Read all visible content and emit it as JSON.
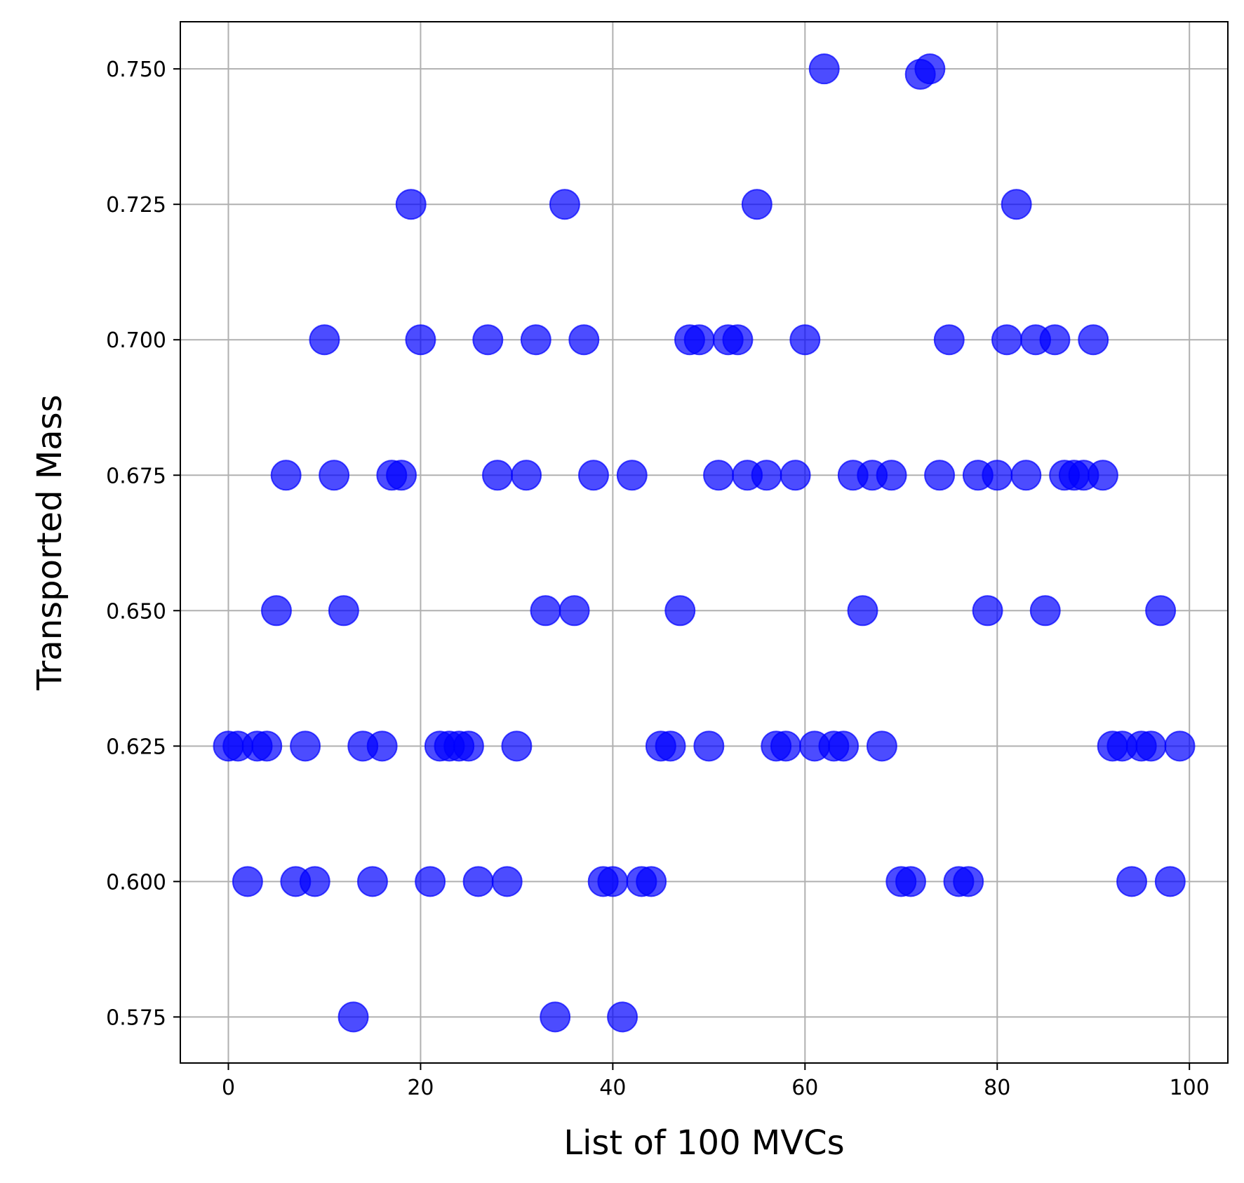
{
  "chart_data": {
    "type": "scatter",
    "title": "",
    "xlabel": "List of 100 MVCs",
    "ylabel": "Transported Mass",
    "xlim": [
      -5,
      104
    ],
    "ylim": [
      0.5665,
      0.7587
    ],
    "xticks": [
      0,
      20,
      40,
      60,
      80,
      100
    ],
    "xtick_labels": [
      "0",
      "20",
      "40",
      "60",
      "80",
      "100"
    ],
    "yticks": [
      0.575,
      0.6,
      0.625,
      0.65,
      0.675,
      0.7,
      0.725,
      0.75
    ],
    "ytick_labels": [
      "0.575",
      "0.600",
      "0.625",
      "0.650",
      "0.675",
      "0.700",
      "0.725",
      "0.750"
    ],
    "grid": true,
    "marker_color": "#0000ff",
    "marker_opacity": 0.7,
    "points": [
      {
        "x": 0,
        "y": 0.625
      },
      {
        "x": 1,
        "y": 0.625
      },
      {
        "x": 2,
        "y": 0.6
      },
      {
        "x": 3,
        "y": 0.625
      },
      {
        "x": 4,
        "y": 0.625
      },
      {
        "x": 5,
        "y": 0.65
      },
      {
        "x": 6,
        "y": 0.675
      },
      {
        "x": 7,
        "y": 0.6
      },
      {
        "x": 8,
        "y": 0.625
      },
      {
        "x": 9,
        "y": 0.6
      },
      {
        "x": 10,
        "y": 0.7
      },
      {
        "x": 11,
        "y": 0.675
      },
      {
        "x": 12,
        "y": 0.65
      },
      {
        "x": 13,
        "y": 0.575
      },
      {
        "x": 14,
        "y": 0.625
      },
      {
        "x": 15,
        "y": 0.6
      },
      {
        "x": 16,
        "y": 0.625
      },
      {
        "x": 17,
        "y": 0.675
      },
      {
        "x": 18,
        "y": 0.675
      },
      {
        "x": 19,
        "y": 0.725
      },
      {
        "x": 20,
        "y": 0.7
      },
      {
        "x": 21,
        "y": 0.6
      },
      {
        "x": 22,
        "y": 0.625
      },
      {
        "x": 23,
        "y": 0.625
      },
      {
        "x": 24,
        "y": 0.625
      },
      {
        "x": 25,
        "y": 0.625
      },
      {
        "x": 26,
        "y": 0.6
      },
      {
        "x": 27,
        "y": 0.7
      },
      {
        "x": 28,
        "y": 0.675
      },
      {
        "x": 29,
        "y": 0.6
      },
      {
        "x": 30,
        "y": 0.625
      },
      {
        "x": 31,
        "y": 0.675
      },
      {
        "x": 32,
        "y": 0.7
      },
      {
        "x": 33,
        "y": 0.65
      },
      {
        "x": 34,
        "y": 0.575
      },
      {
        "x": 35,
        "y": 0.725
      },
      {
        "x": 36,
        "y": 0.65
      },
      {
        "x": 37,
        "y": 0.7
      },
      {
        "x": 38,
        "y": 0.675
      },
      {
        "x": 39,
        "y": 0.6
      },
      {
        "x": 40,
        "y": 0.6
      },
      {
        "x": 41,
        "y": 0.575
      },
      {
        "x": 42,
        "y": 0.675
      },
      {
        "x": 43,
        "y": 0.6
      },
      {
        "x": 44,
        "y": 0.6
      },
      {
        "x": 45,
        "y": 0.625
      },
      {
        "x": 46,
        "y": 0.625
      },
      {
        "x": 47,
        "y": 0.65
      },
      {
        "x": 48,
        "y": 0.7
      },
      {
        "x": 49,
        "y": 0.7
      },
      {
        "x": 50,
        "y": 0.625
      },
      {
        "x": 51,
        "y": 0.675
      },
      {
        "x": 52,
        "y": 0.7
      },
      {
        "x": 53,
        "y": 0.7
      },
      {
        "x": 54,
        "y": 0.675
      },
      {
        "x": 55,
        "y": 0.725
      },
      {
        "x": 56,
        "y": 0.675
      },
      {
        "x": 57,
        "y": 0.625
      },
      {
        "x": 58,
        "y": 0.625
      },
      {
        "x": 59,
        "y": 0.675
      },
      {
        "x": 60,
        "y": 0.7
      },
      {
        "x": 61,
        "y": 0.625
      },
      {
        "x": 62,
        "y": 0.75
      },
      {
        "x": 63,
        "y": 0.625
      },
      {
        "x": 64,
        "y": 0.625
      },
      {
        "x": 65,
        "y": 0.675
      },
      {
        "x": 66,
        "y": 0.65
      },
      {
        "x": 67,
        "y": 0.675
      },
      {
        "x": 68,
        "y": 0.625
      },
      {
        "x": 69,
        "y": 0.675
      },
      {
        "x": 70,
        "y": 0.6
      },
      {
        "x": 71,
        "y": 0.6
      },
      {
        "x": 72,
        "y": 0.749
      },
      {
        "x": 73,
        "y": 0.75
      },
      {
        "x": 74,
        "y": 0.675
      },
      {
        "x": 75,
        "y": 0.7
      },
      {
        "x": 76,
        "y": 0.6
      },
      {
        "x": 77,
        "y": 0.6
      },
      {
        "x": 78,
        "y": 0.675
      },
      {
        "x": 79,
        "y": 0.65
      },
      {
        "x": 80,
        "y": 0.675
      },
      {
        "x": 81,
        "y": 0.7
      },
      {
        "x": 82,
        "y": 0.725
      },
      {
        "x": 83,
        "y": 0.675
      },
      {
        "x": 84,
        "y": 0.7
      },
      {
        "x": 85,
        "y": 0.65
      },
      {
        "x": 86,
        "y": 0.7
      },
      {
        "x": 87,
        "y": 0.675
      },
      {
        "x": 88,
        "y": 0.675
      },
      {
        "x": 89,
        "y": 0.675
      },
      {
        "x": 90,
        "y": 0.7
      },
      {
        "x": 91,
        "y": 0.675
      },
      {
        "x": 92,
        "y": 0.625
      },
      {
        "x": 93,
        "y": 0.625
      },
      {
        "x": 94,
        "y": 0.6
      },
      {
        "x": 95,
        "y": 0.625
      },
      {
        "x": 96,
        "y": 0.625
      },
      {
        "x": 97,
        "y": 0.65
      },
      {
        "x": 98,
        "y": 0.6
      },
      {
        "x": 99,
        "y": 0.625
      }
    ]
  }
}
